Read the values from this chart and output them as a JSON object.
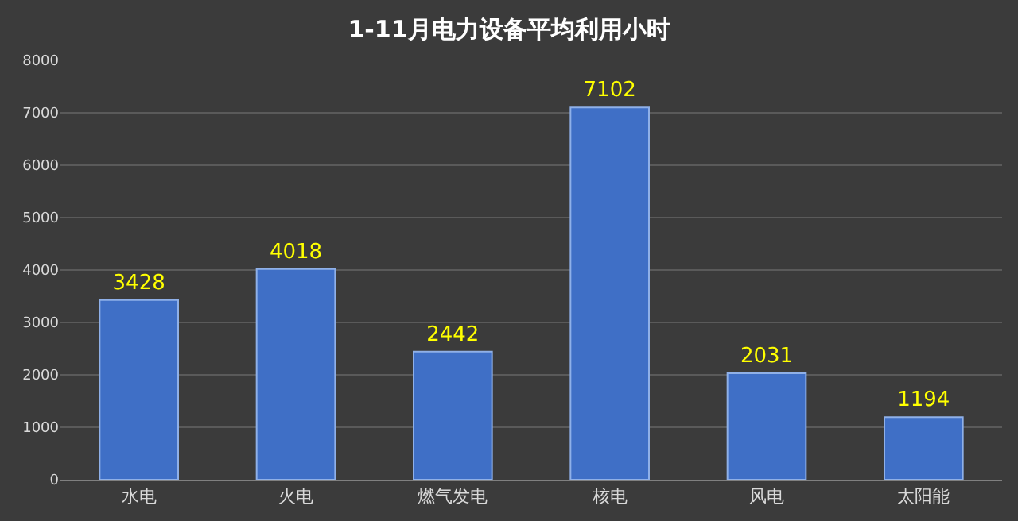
{
  "chart_data": {
    "type": "bar",
    "title": "1-11月电力设备平均利用小时",
    "categories": [
      "水电",
      "火电",
      "燃气发电",
      "核电",
      "风电",
      "太阳能"
    ],
    "values": [
      3428,
      4018,
      2442,
      7102,
      2031,
      1194
    ],
    "color": "#3f6fc6",
    "ylim": [
      0,
      8000
    ],
    "yticks": [
      0,
      1000,
      2000,
      3000,
      4000,
      5000,
      6000,
      7000,
      8000
    ],
    "grid": "y",
    "data_labels": true
  }
}
